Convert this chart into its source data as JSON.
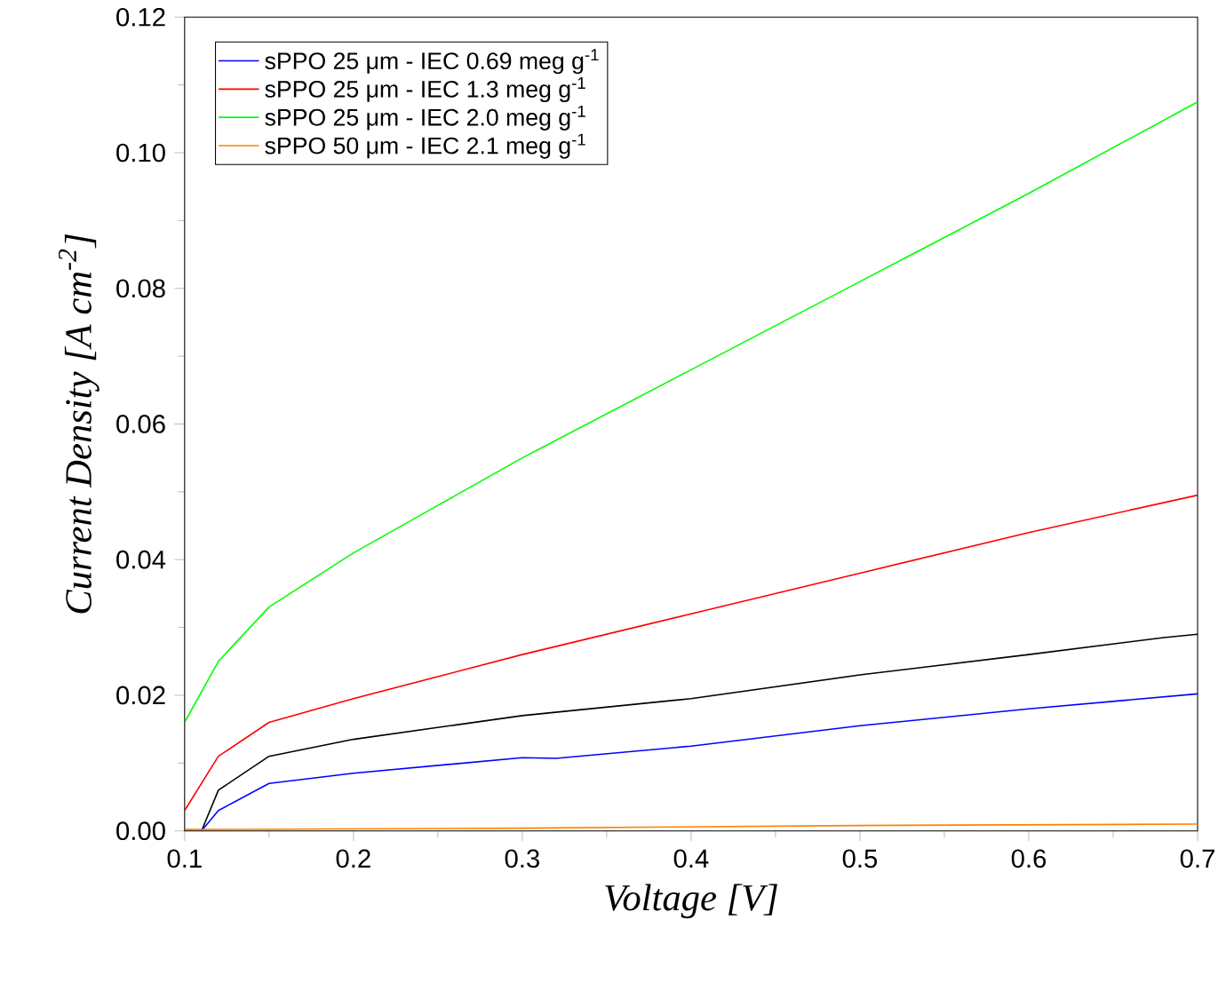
{
  "chart_data": {
    "type": "line",
    "xlabel": "Voltage [V]",
    "ylabel": "Current Density [A cm$^{-2}$]",
    "xlim": [
      0.1,
      0.7
    ],
    "ylim": [
      0,
      0.12
    ],
    "xticks": [
      {
        "value": 0.1,
        "label": "0.1"
      },
      {
        "value": 0.2,
        "label": "0.2"
      },
      {
        "value": 0.3,
        "label": "0.3"
      },
      {
        "value": 0.4,
        "label": "0.4"
      },
      {
        "value": 0.5,
        "label": "0.5"
      },
      {
        "value": 0.6,
        "label": "0.6"
      },
      {
        "value": 0.7,
        "label": "0.7"
      }
    ],
    "yticks": [
      {
        "value": 0,
        "label": "0.00"
      },
      {
        "value": 0.02,
        "label": "0.02"
      },
      {
        "value": 0.04,
        "label": "0.04"
      },
      {
        "value": 0.06,
        "label": "0.06"
      },
      {
        "value": 0.08,
        "label": "0.08"
      },
      {
        "value": 0.1,
        "label": "0.10"
      },
      {
        "value": 0.12,
        "label": "0.12"
      }
    ],
    "legend": "top left",
    "grid": false,
    "series": [
      {
        "color": "#000000",
        "x": [
          0.11,
          0.12,
          0.15,
          0.2,
          0.3,
          0.4,
          0.5,
          0.6,
          0.68,
          0.7
        ],
        "values": [
          0,
          0.006,
          0.011,
          0.0135,
          0.017,
          0.0195,
          0.023,
          0.026,
          0.0285,
          0.029
        ]
      },
      {
        "name": "sPPO 25 μm - IEC 0.69 meg g$^{-1}$",
        "color": "#0000ff",
        "x": [
          0.11,
          0.12,
          0.15,
          0.2,
          0.3,
          0.32,
          0.4,
          0.5,
          0.6,
          0.7
        ],
        "values": [
          0,
          0.003,
          0.007,
          0.0085,
          0.0108,
          0.0107,
          0.0125,
          0.0155,
          0.018,
          0.0202
        ]
      },
      {
        "name": "sPPO 25 μm - IEC 1.3 meg g$^{-1}$",
        "color": "#ff0000",
        "x": [
          0.1,
          0.12,
          0.15,
          0.2,
          0.3,
          0.4,
          0.5,
          0.6,
          0.7
        ],
        "values": [
          0.003,
          0.011,
          0.016,
          0.0195,
          0.026,
          0.032,
          0.038,
          0.044,
          0.0495
        ]
      },
      {
        "name": "sPPO 25 μm - IEC 2.0 meg g$^{-1}$",
        "color": "#00ff00",
        "x": [
          0.1,
          0.12,
          0.15,
          0.2,
          0.25,
          0.3,
          0.4,
          0.5,
          0.6,
          0.7
        ],
        "values": [
          0.016,
          0.025,
          0.033,
          0.041,
          0.048,
          0.055,
          0.068,
          0.081,
          0.094,
          0.1075
        ]
      },
      {
        "name": "sPPO 50 μm - IEC 2.1 meg g$^{-1}$",
        "color": "#ff8000",
        "x": [
          0.1,
          0.3,
          0.5,
          0.7
        ],
        "values": [
          0.0002,
          0.0004,
          0.0008,
          0.001
        ]
      }
    ]
  }
}
